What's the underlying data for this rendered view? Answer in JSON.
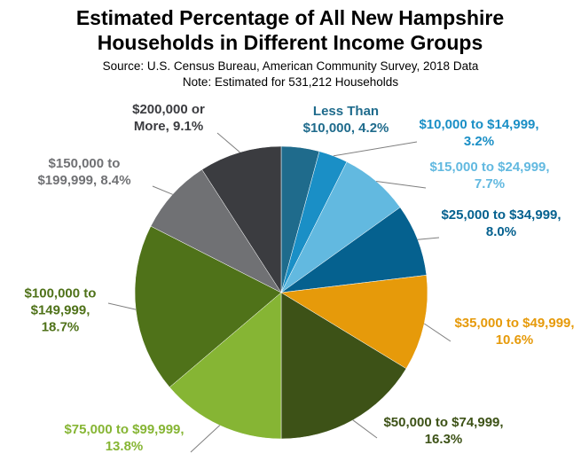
{
  "chart_data": {
    "type": "pie",
    "title": "Estimated Percentage of All New Hampshire Households in Different Income Groups",
    "subtitle": "Source: U.S. Census Bureau, American Community Survey, 2018 Data",
    "note": "Note: Estimated for 531,212 Households",
    "values": [
      4.2,
      3.2,
      7.7,
      8.0,
      10.6,
      16.3,
      13.8,
      18.7,
      8.4,
      9.1
    ],
    "value_labels": [
      "Less Than $10,000, 4.2%",
      "$10,000 to $14,999, 3.2%",
      "$15,000 to $24,999, 7.7%",
      "$25,000 to $34,999, 8.0%",
      "$35,000 to $49,999, 10.6%",
      "$50,000 to $74,999, 16.3%",
      "$75,000 to $99,999, 13.8%",
      "$100,000 to $149,999, 18.7%",
      "$150,000 to $199,999, 8.4%",
      "$200,000 or More, 9.1%"
    ],
    "colors": [
      "#1f6b8c",
      "#1a8fc6",
      "#62b9e0",
      "#05618f",
      "#e69a0a",
      "#3d5217",
      "#86b534",
      "#4f7219",
      "#707174",
      "#3b3c40"
    ]
  }
}
